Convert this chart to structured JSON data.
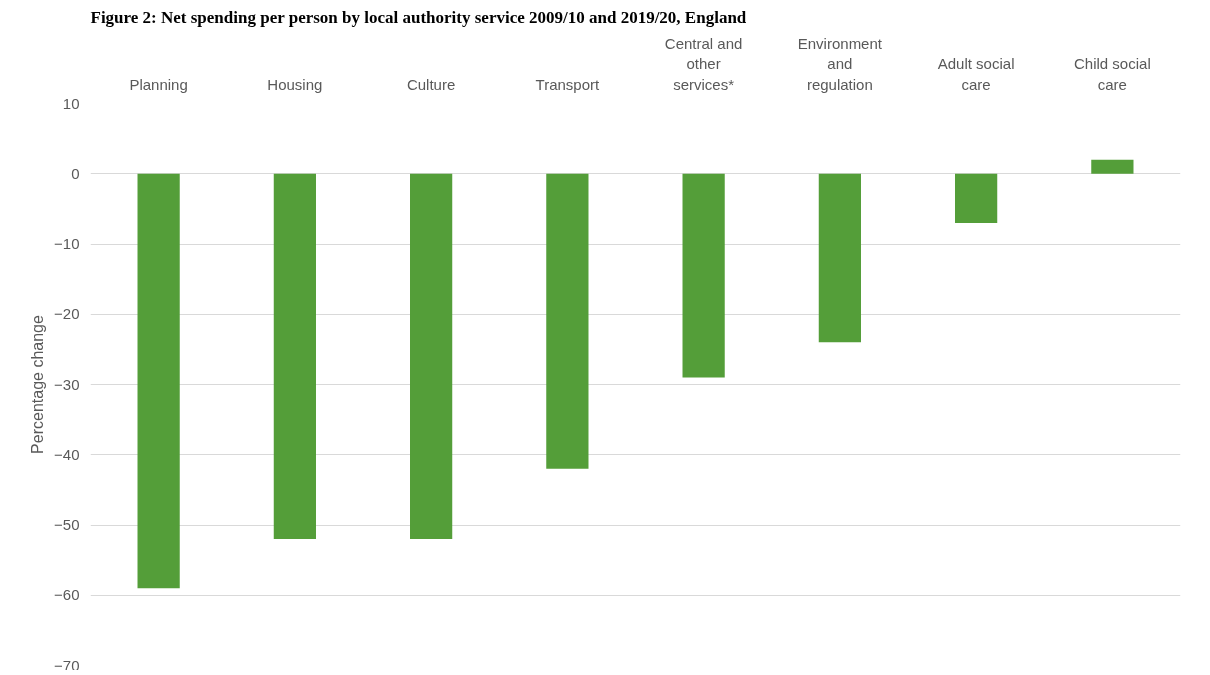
{
  "chart_data": {
    "type": "bar",
    "title": "Figure 2: Net spending per person by local authority service 2009/10 and 2019/20, England",
    "ylabel": "Percentage change",
    "categories": [
      "Planning",
      "Housing",
      "Culture",
      "Transport",
      "Central and other services*",
      "Environment and regulation",
      "Adult social care",
      "Child social care"
    ],
    "values": [
      -59,
      -52,
      -52,
      -42,
      -29,
      -24,
      -7,
      2
    ],
    "color": "#549e39",
    "ylim": [
      -70,
      10
    ],
    "yticks": [
      -70,
      -60,
      -50,
      -40,
      -30,
      -20,
      -10,
      0,
      10
    ],
    "grid": "y"
  }
}
